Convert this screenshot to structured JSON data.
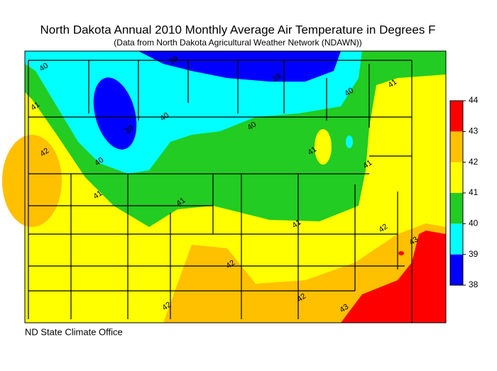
{
  "title": "North Dakota Annual 2010 Monthly Average Air Temperature in Degrees F",
  "subtitle": "(Data from North Dakota Agricultural Weather Network (NDAWN))",
  "credit": "ND State Climate Office",
  "legend": {
    "ticks": [
      38,
      39,
      40,
      41,
      42,
      43,
      44
    ],
    "colors": [
      "#0000ff",
      "#00ffff",
      "#22cc22",
      "#ffff00",
      "#ffc000",
      "#ff0000"
    ]
  },
  "contour_labels": [
    40,
    39,
    39,
    40,
    41,
    41,
    39,
    40,
    40,
    42,
    40,
    41,
    41,
    41,
    41,
    41,
    42,
    43,
    42,
    42,
    42,
    43
  ]
}
